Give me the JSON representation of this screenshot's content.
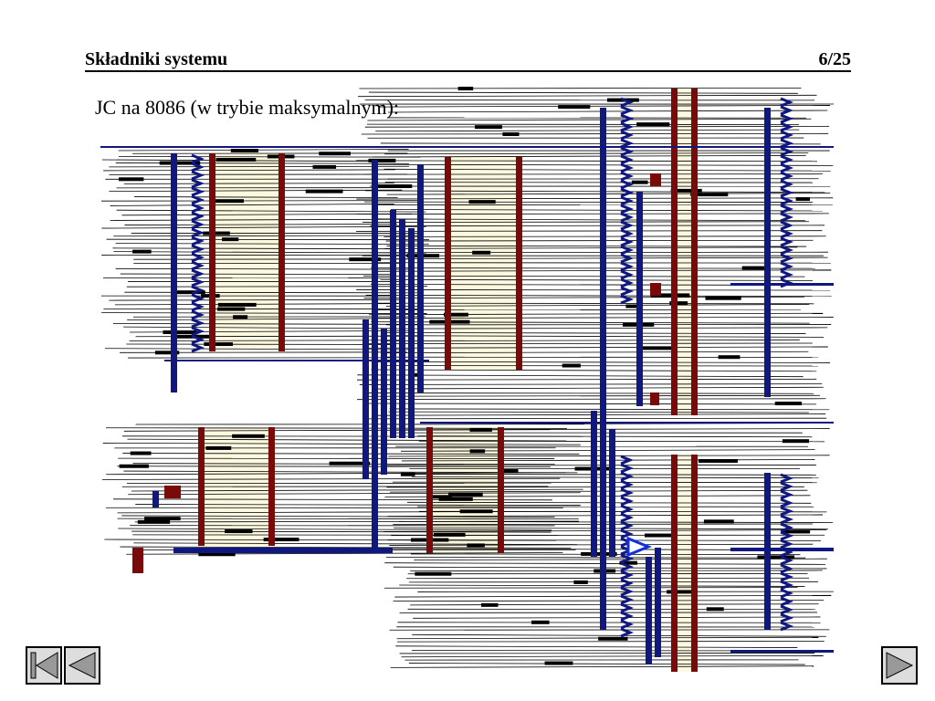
{
  "header": {
    "title": "Składniki systemu",
    "page": "6/25"
  },
  "body": {
    "text": "JC na 8086 (w trybie maksymalnym):"
  }
}
